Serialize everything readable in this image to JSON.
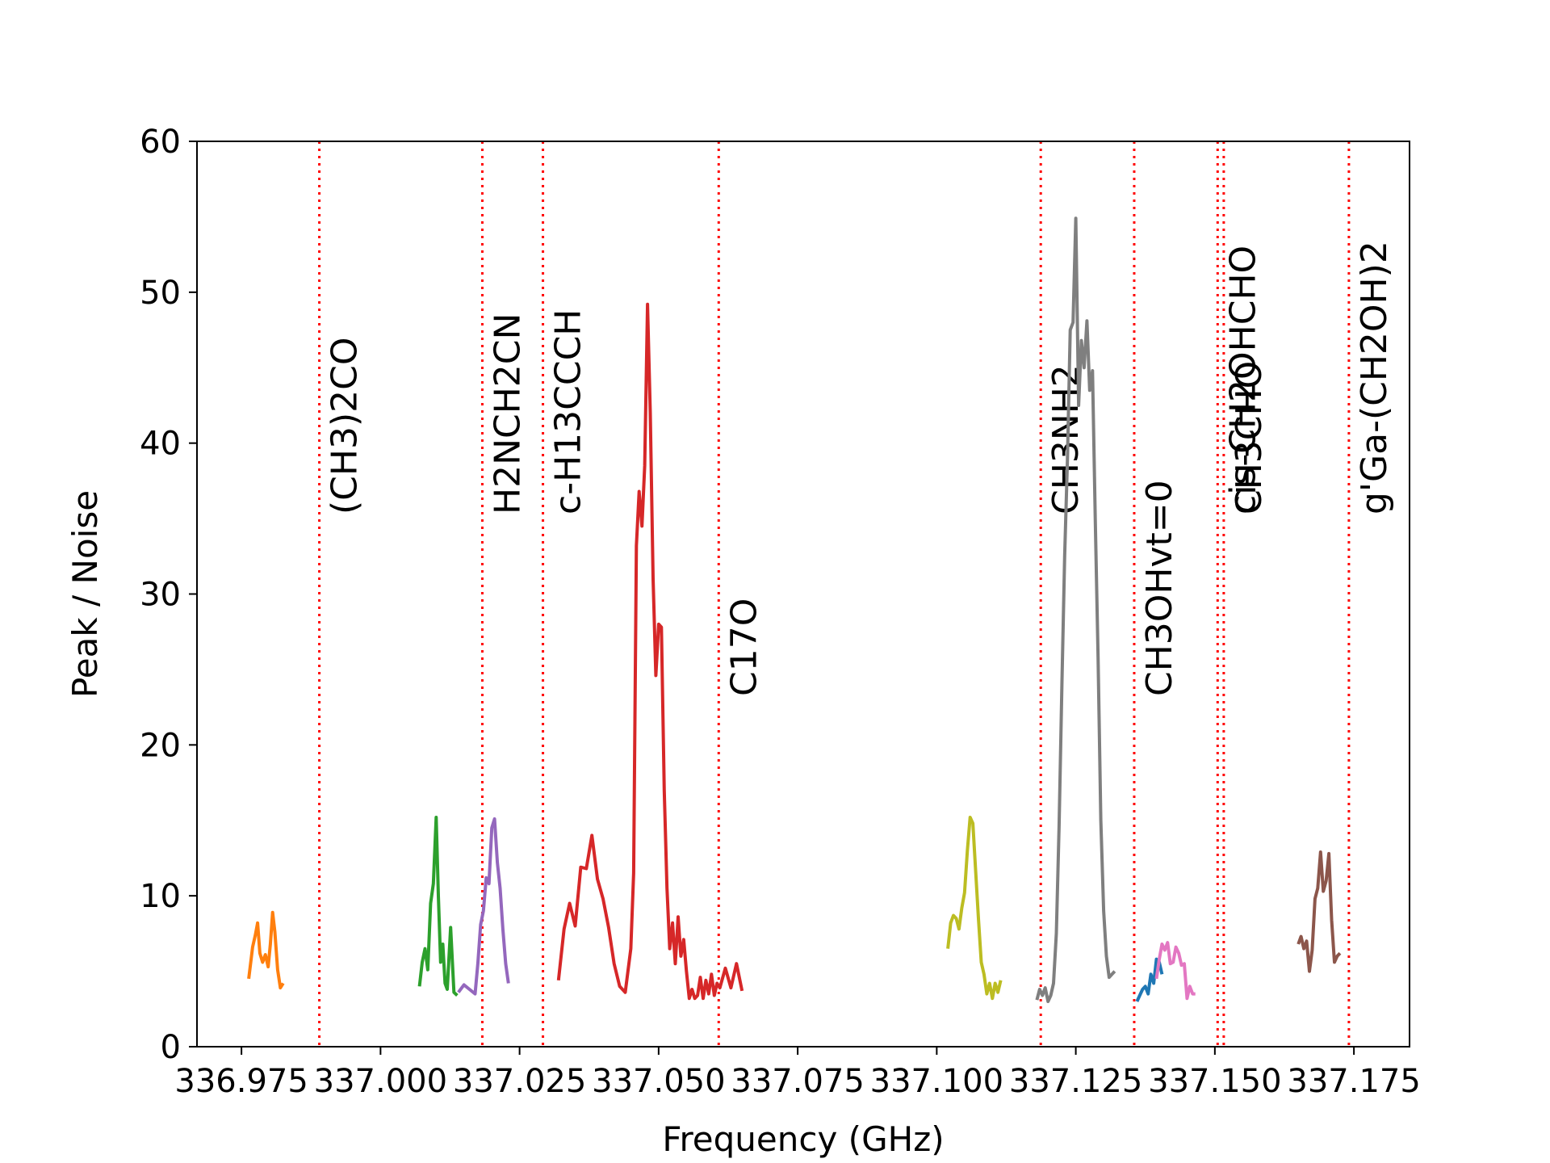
{
  "chart_data": {
    "type": "line",
    "title": "",
    "xlabel": "Frequency (GHz)",
    "ylabel": "Peak / Noise",
    "xlim": [
      336.967,
      337.185
    ],
    "ylim": [
      0,
      60
    ],
    "x_ticks": [
      "336.975",
      "337.000",
      "337.025",
      "337.050",
      "337.075",
      "337.100",
      "337.125",
      "337.150",
      "337.175"
    ],
    "y_ticks": [
      "0",
      "10",
      "20",
      "30",
      "40",
      "50",
      "60"
    ],
    "grid": false,
    "legend": "none",
    "line_markers": {
      "color": "#ff0000",
      "style": "dotted",
      "items": [
        {
          "x": 336.989,
          "label": "(CH3)2CO"
        },
        {
          "x": 337.0183,
          "label": "H2NCH2CN"
        },
        {
          "x": 337.0292,
          "label": "c-H13CCCH"
        },
        {
          "x": 337.0608,
          "label": "C17O"
        },
        {
          "x": 337.1187,
          "label": "CH3NH2"
        },
        {
          "x": 337.1355,
          "label": "CH3OHvt=0"
        },
        {
          "x": 337.1505,
          "label": "cis-CH2OHCHO"
        },
        {
          "x": 337.1516,
          "label": "CH3CHO"
        },
        {
          "x": 337.1741,
          "label": "g'Ga-(CH2OH)2"
        }
      ]
    },
    "series": [
      {
        "color": "#ff7f0e",
        "x": [
          336.9763,
          336.977,
          336.9775,
          336.9779,
          336.9783,
          336.9788,
          336.9793,
          336.9798,
          336.9802,
          336.9806,
          336.981,
          336.9815,
          336.982,
          336.9825
        ],
        "values": [
          4.5,
          6.6,
          7.4,
          8.2,
          6.2,
          5.6,
          6.1,
          5.3,
          6.8,
          8.9,
          7.6,
          5.1,
          3.9,
          4.2
        ]
      },
      {
        "color": "#2ca02c",
        "x": [
          337.007,
          337.0075,
          337.008,
          337.0085,
          337.009,
          337.0095,
          337.01,
          337.0104,
          337.0108,
          337.0112,
          337.0116,
          337.012,
          337.0126,
          337.0132,
          337.0138
        ],
        "values": [
          4.0,
          5.6,
          6.5,
          5.1,
          9.5,
          10.8,
          15.2,
          10.0,
          5.6,
          6.8,
          4.2,
          3.8,
          7.9,
          3.6,
          3.4
        ]
      },
      {
        "color": "#9467bd",
        "x": [
          337.014,
          337.015,
          337.016,
          337.017,
          337.0175,
          337.018,
          337.0185,
          337.019,
          337.0195,
          337.02,
          337.0205,
          337.021,
          337.0215,
          337.022,
          337.0225,
          337.023
        ],
        "values": [
          3.6,
          4.1,
          3.8,
          3.5,
          5.5,
          8.1,
          9.0,
          11.2,
          10.8,
          14.5,
          15.1,
          12.2,
          10.5,
          7.8,
          5.5,
          4.2
        ]
      },
      {
        "color": "#d62728",
        "x": [
          337.032,
          337.033,
          337.034,
          337.035,
          337.036,
          337.037,
          337.038,
          337.039,
          337.04,
          337.041,
          337.042,
          337.043,
          337.044,
          337.045,
          337.0455,
          337.046,
          337.0465,
          337.047,
          337.0475,
          337.048,
          337.0485,
          337.049,
          337.0495,
          337.05,
          337.0505,
          337.051,
          337.0515,
          337.052,
          337.0525,
          337.053,
          337.0535,
          337.054,
          337.0545,
          337.055,
          337.0555,
          337.056,
          337.0565,
          337.057,
          337.0575,
          337.058,
          337.0585,
          337.059,
          337.0595,
          337.06,
          337.0605,
          337.061,
          337.062,
          337.063,
          337.064,
          337.065
        ],
        "values": [
          4.4,
          7.8,
          9.5,
          8.0,
          11.9,
          11.8,
          14.0,
          11.1,
          9.8,
          7.9,
          5.5,
          4.0,
          3.6,
          6.5,
          11.5,
          33.2,
          36.8,
          34.5,
          38.5,
          49.2,
          42.0,
          31.0,
          24.6,
          28.0,
          27.8,
          17.0,
          10.5,
          6.5,
          8.2,
          5.5,
          8.6,
          6.0,
          7.1,
          5.0,
          3.2,
          3.8,
          3.2,
          3.4,
          4.6,
          3.2,
          4.4,
          3.5,
          4.8,
          3.4,
          4.2,
          3.9,
          5.2,
          3.9,
          5.5,
          3.7
        ]
      },
      {
        "color": "#bcbd22",
        "x": [
          337.102,
          337.1025,
          337.103,
          337.1035,
          337.104,
          337.1045,
          337.105,
          337.1055,
          337.106,
          337.1065,
          337.107,
          337.1075,
          337.108,
          337.1085,
          337.109,
          337.1095,
          337.11,
          337.1105,
          337.111,
          337.1115
        ],
        "values": [
          6.5,
          8.2,
          8.7,
          8.5,
          7.8,
          9.2,
          10.2,
          13.0,
          15.2,
          14.8,
          11.6,
          8.5,
          5.6,
          4.8,
          3.5,
          4.2,
          3.2,
          4.2,
          3.6,
          4.4
        ]
      },
      {
        "color": "#7f7f7f",
        "x": [
          337.118,
          337.1185,
          337.119,
          337.1195,
          337.12,
          337.1205,
          337.121,
          337.1215,
          337.122,
          337.1225,
          337.123,
          337.1235,
          337.124,
          337.1245,
          337.125,
          337.1255,
          337.126,
          337.1265,
          337.127,
          337.1275,
          337.128,
          337.1285,
          337.129,
          337.1295,
          337.13,
          337.1305,
          337.131,
          337.1315,
          337.132
        ],
        "values": [
          3.1,
          3.8,
          3.4,
          3.9,
          3.0,
          3.4,
          4.2,
          7.5,
          14.6,
          24.0,
          32.5,
          39.0,
          47.5,
          48.0,
          54.9,
          42.5,
          46.8,
          45.0,
          48.1,
          43.5,
          44.8,
          35.0,
          25.8,
          15.0,
          9.0,
          6.0,
          4.6,
          4.8,
          5.0
        ]
      },
      {
        "color": "#1f77b4",
        "x": [
          337.136,
          337.1365,
          337.137,
          337.1375,
          337.138,
          337.1385,
          337.139,
          337.1395,
          337.14,
          337.1405
        ],
        "values": [
          3.0,
          3.4,
          3.8,
          4.0,
          3.5,
          4.8,
          4.2,
          5.8,
          5.6,
          4.8
        ]
      },
      {
        "color": "#e377c2",
        "x": [
          337.1395,
          337.14,
          337.1405,
          337.141,
          337.1415,
          337.142,
          337.1425,
          337.143,
          337.1435,
          337.144,
          337.1445,
          337.145,
          337.1455,
          337.146,
          337.1465
        ],
        "values": [
          4.5,
          5.8,
          6.8,
          6.4,
          6.9,
          5.5,
          5.6,
          6.6,
          6.2,
          5.4,
          5.5,
          3.2,
          4.0,
          3.5,
          3.5
        ]
      },
      {
        "color": "#8c564b",
        "x": [
          337.165,
          337.1655,
          337.166,
          337.1665,
          337.167,
          337.1675,
          337.168,
          337.1685,
          337.169,
          337.1695,
          337.17,
          337.1705,
          337.171,
          337.1715,
          337.172,
          337.1725
        ],
        "values": [
          6.8,
          7.3,
          6.5,
          7.0,
          5.0,
          6.4,
          9.8,
          10.5,
          12.9,
          10.3,
          11.0,
          12.8,
          8.4,
          5.6,
          6.0,
          6.2
        ]
      }
    ]
  }
}
